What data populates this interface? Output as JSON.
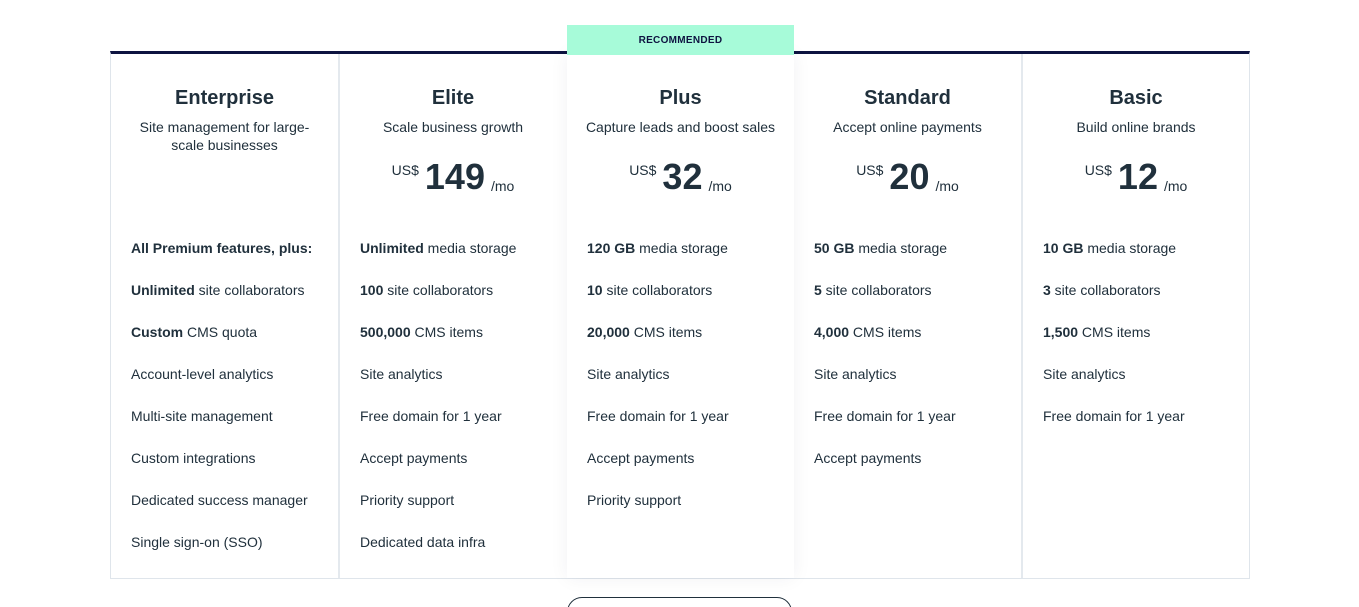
{
  "plans": [
    {
      "name": "Enterprise",
      "description": "Site management for large-scale businesses",
      "price": null,
      "features": [
        {
          "bold": "All Premium features, plus:",
          "text": ""
        },
        {
          "bold": "Unlimited",
          "text": " site collaborators"
        },
        {
          "bold": "Custom",
          "text": " CMS quota"
        },
        {
          "bold": "",
          "text": "Account-level analytics"
        },
        {
          "bold": "",
          "text": "Multi-site management"
        },
        {
          "bold": "",
          "text": "Custom integrations"
        },
        {
          "bold": "",
          "text": "Dedicated success manager"
        },
        {
          "bold": "",
          "text": "Single sign-on (SSO)"
        }
      ]
    },
    {
      "name": "Elite",
      "description": "Scale business growth",
      "price": {
        "currency": "US$",
        "amount": "149",
        "period": "/mo"
      },
      "features": [
        {
          "bold": "Unlimited",
          "text": " media storage"
        },
        {
          "bold": "100",
          "text": " site collaborators"
        },
        {
          "bold": "500,000",
          "text": " CMS items"
        },
        {
          "bold": "",
          "text": "Site analytics"
        },
        {
          "bold": "",
          "text": "Free domain for 1 year"
        },
        {
          "bold": "",
          "text": "Accept payments"
        },
        {
          "bold": "",
          "text": "Priority support"
        },
        {
          "bold": "",
          "text": "Dedicated data infra"
        }
      ]
    },
    {
      "name": "Plus",
      "description": "Capture leads and boost sales",
      "recommended_label": "RECOMMENDED",
      "price": {
        "currency": "US$",
        "amount": "32",
        "period": "/mo"
      },
      "features": [
        {
          "bold": "120 GB",
          "text": " media storage"
        },
        {
          "bold": "10",
          "text": " site collaborators"
        },
        {
          "bold": "20,000",
          "text": " CMS items"
        },
        {
          "bold": "",
          "text": "Site analytics"
        },
        {
          "bold": "",
          "text": "Free domain for 1 year"
        },
        {
          "bold": "",
          "text": "Accept payments"
        },
        {
          "bold": "",
          "text": "Priority support"
        }
      ]
    },
    {
      "name": "Standard",
      "description": "Accept online payments",
      "price": {
        "currency": "US$",
        "amount": "20",
        "period": "/mo"
      },
      "features": [
        {
          "bold": "50 GB",
          "text": " media storage"
        },
        {
          "bold": "5",
          "text": " site collaborators"
        },
        {
          "bold": "4,000",
          "text": " CMS items"
        },
        {
          "bold": "",
          "text": "Site analytics"
        },
        {
          "bold": "",
          "text": "Free domain for 1 year"
        },
        {
          "bold": "",
          "text": "Accept payments"
        }
      ]
    },
    {
      "name": "Basic",
      "description": "Build online brands",
      "price": {
        "currency": "US$",
        "amount": "12",
        "period": "/mo"
      },
      "features": [
        {
          "bold": "10 GB",
          "text": " media storage"
        },
        {
          "bold": "3",
          "text": " site collaborators"
        },
        {
          "bold": "1,500",
          "text": " CMS items"
        },
        {
          "bold": "",
          "text": "Site analytics"
        },
        {
          "bold": "",
          "text": "Free domain for 1 year"
        }
      ]
    }
  ],
  "colors": {
    "accent_border": "#0d1340",
    "recommended_badge": "#a7fbd9",
    "text": "#20303c"
  }
}
